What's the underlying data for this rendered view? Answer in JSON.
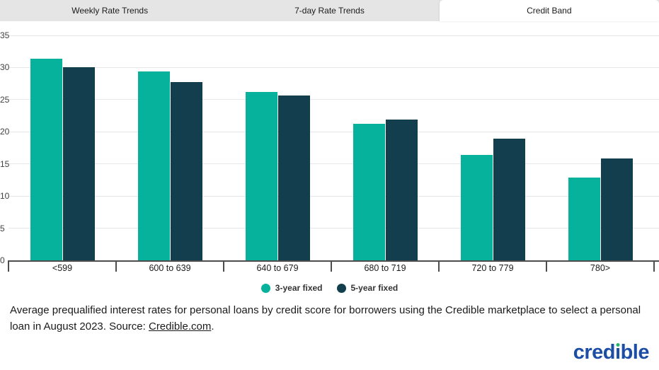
{
  "tabs": [
    {
      "label": "Weekly Rate Trends",
      "active": false
    },
    {
      "label": "7-day Rate Trends",
      "active": false
    },
    {
      "label": "Credit Band",
      "active": true
    }
  ],
  "chart_data": {
    "type": "bar",
    "title": "",
    "xlabel": "",
    "ylabel": "",
    "categories": [
      "<599",
      "600 to 639",
      "640 to 679",
      "680 to 719",
      "720 to 779",
      "780>"
    ],
    "series": [
      {
        "name": "3-year fixed",
        "color": "#06b29c",
        "values": [
          31.4,
          29.4,
          26.2,
          21.2,
          16.4,
          12.9
        ]
      },
      {
        "name": "5-year fixed",
        "color": "#123e4e",
        "values": [
          30.0,
          27.7,
          25.6,
          21.9,
          18.9,
          15.9
        ]
      }
    ],
    "ylim": [
      0,
      35
    ],
    "yticks": [
      0,
      5,
      10,
      15,
      20,
      25,
      30,
      35
    ],
    "grid": "horizontal",
    "legend_position": "bottom"
  },
  "caption": {
    "text_before_link": "Average prequalified interest rates for personal loans by credit score for borrowers using the Credible marketplace to select a personal loan in August 2023. Source: ",
    "link_text": "Credible.com",
    "text_after_link": "."
  },
  "logo": {
    "prefix": "cred",
    "i": "ı",
    "suffix": "ble",
    "brand_color": "#1d4ea5",
    "dot_color": "#24b56d"
  }
}
